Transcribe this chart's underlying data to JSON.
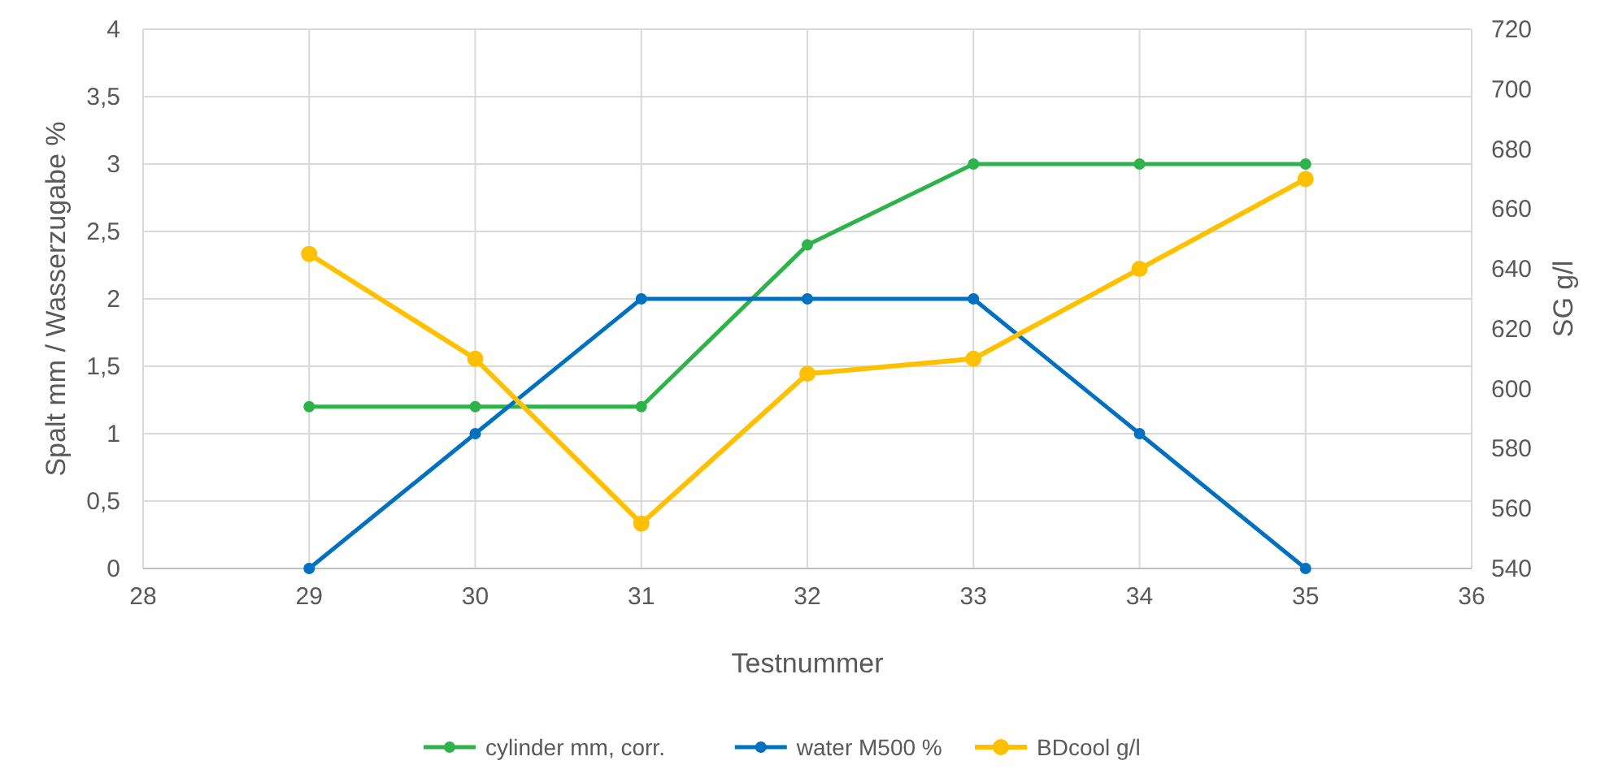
{
  "chart_data": {
    "type": "line",
    "xlabel": "Testnummer",
    "ylabel": "Spalt mm / Wasserzugabe %",
    "y2label": "SG g/l",
    "x": [
      29,
      30,
      31,
      32,
      33,
      34,
      35
    ],
    "series": [
      {
        "name": "cylinder mm, corr.",
        "color": "#2db34a",
        "values": [
          1.2,
          1.2,
          1.2,
          2.4,
          3,
          3,
          3
        ]
      },
      {
        "name": "water M500 %",
        "color": "#0070c0",
        "values": [
          0,
          1,
          2,
          2,
          2,
          1,
          0
        ]
      },
      {
        "name": "BDcool g/l",
        "color": "#ffc000",
        "axis": "y2",
        "values": [
          645,
          610,
          555,
          605,
          610,
          640,
          670
        ]
      }
    ],
    "xlim": [
      28,
      36
    ],
    "xticks": [
      28,
      29,
      30,
      31,
      32,
      33,
      34,
      35,
      36
    ],
    "ylim": [
      0,
      4
    ],
    "yticks": [
      0,
      {
        "value": 0.5,
        "label": "0,5"
      },
      1,
      {
        "value": 1.5,
        "label": "1,5"
      },
      2,
      {
        "value": 2.5,
        "label": "2,5"
      },
      3,
      {
        "value": 3.5,
        "label": "3,5"
      },
      4
    ],
    "y2lim": [
      540,
      720
    ],
    "y2ticks": [
      540,
      560,
      580,
      600,
      620,
      640,
      660,
      680,
      700,
      720
    ],
    "grid": true,
    "legend": "bottom",
    "marker": "circle",
    "line_style": "solid"
  }
}
